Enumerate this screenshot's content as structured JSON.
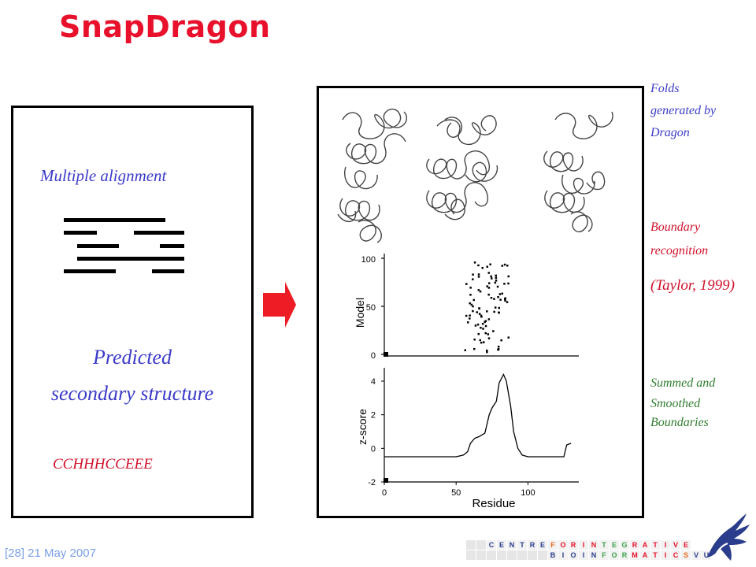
{
  "title": "SnapDragon",
  "left_panel": {
    "heading": "Multiple alignment",
    "predicted_line1": "Predicted",
    "predicted_line2": "secondary structure",
    "sequence": "CCHHHCCEEE"
  },
  "right_labels": {
    "folds_line1": "Folds",
    "folds_line2": "generated by",
    "folds_line3": "Dragon",
    "boundary_line1": "Boundary",
    "boundary_line2": "recognition",
    "citation": "(Taylor, 1999)",
    "summed_line1": "Summed and",
    "summed_line2": "Smoothed",
    "summed_line3": "Boundaries"
  },
  "scatter_plot": {
    "ylabel": "Model",
    "yticks": [
      "100",
      "50",
      "0"
    ]
  },
  "line_plot": {
    "ylabel": "z-score",
    "xlabel": "Residue",
    "yticks": [
      "4",
      "2",
      "0",
      "-2"
    ],
    "xticks": [
      "0",
      "50",
      "100"
    ]
  },
  "footer": "[28] 21 May 2007",
  "logo_rows": {
    "top": [
      "C",
      "E",
      "N",
      "T",
      "R",
      "E",
      "F",
      "O",
      "R",
      "I",
      "N",
      "T",
      "E",
      "G",
      "R",
      "A",
      "T",
      "I",
      "V",
      "E"
    ],
    "bottom": [
      "B",
      "I",
      "O",
      "I",
      "N",
      "F",
      "O",
      "R",
      "M",
      "A",
      "T",
      "I",
      "C",
      "S",
      "V",
      "U"
    ]
  },
  "colors": {
    "title": "#e8102a",
    "blue_text": "#3b3bc8",
    "red_text": "#d0102a",
    "green_text": "#2f7d2f",
    "arrow": "#ee1c25",
    "footer": "#7aa0e8"
  },
  "chart_data": [
    {
      "type": "scatter",
      "ylabel": "Model",
      "ylim": [
        0,
        100
      ],
      "xlim": [
        0,
        130
      ],
      "note": "cluster of boundary points around residue 60-85"
    },
    {
      "type": "line",
      "ylabel": "z-score",
      "xlabel": "Residue",
      "xlim": [
        0,
        130
      ],
      "ylim": [
        -2,
        4.5
      ],
      "x": [
        0,
        10,
        20,
        30,
        40,
        50,
        55,
        58,
        60,
        63,
        66,
        70,
        73,
        75,
        78,
        80,
        83,
        85,
        88,
        90,
        93,
        96,
        100,
        110,
        120,
        125,
        127,
        130
      ],
      "y": [
        -0.5,
        -0.5,
        -0.5,
        -0.5,
        -0.5,
        -0.5,
        -0.4,
        -0.2,
        0.3,
        0.6,
        0.7,
        0.9,
        2.0,
        2.4,
        2.8,
        3.9,
        4.4,
        4.0,
        2.5,
        1.0,
        0.0,
        -0.4,
        -0.5,
        -0.5,
        -0.5,
        -0.5,
        0.2,
        0.3
      ]
    }
  ]
}
